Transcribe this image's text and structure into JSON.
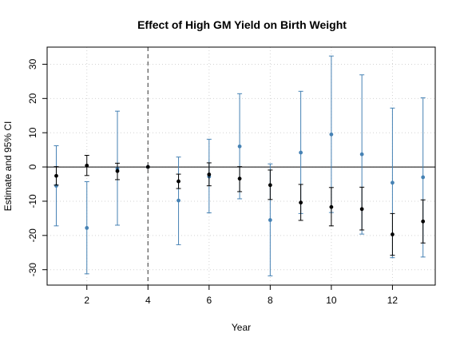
{
  "chart_data": {
    "type": "scatter",
    "title": "Effect of High GM Yield on Birth Weight",
    "xlabel": "Year",
    "ylabel": "Estimate and 95% CI",
    "xlim": [
      0.7,
      13.4
    ],
    "ylim": [
      -34.5,
      35
    ],
    "xticks": [
      2,
      4,
      6,
      8,
      10,
      12
    ],
    "yticks": [
      -30,
      -20,
      -10,
      0,
      10,
      20,
      30
    ],
    "grid": true,
    "reference_hline": 0,
    "reference_vline": 4,
    "series": [
      {
        "color": "#4682b4",
        "x": [
          1,
          2,
          3,
          4,
          5,
          6,
          7,
          8,
          9,
          10,
          11,
          12,
          13
        ],
        "estimate": [
          -5.5,
          -17.8,
          -0.5,
          0,
          -9.8,
          -2.8,
          6.0,
          -15.5,
          4.2,
          9.5,
          3.7,
          -4.6,
          -3.0
        ],
        "ci_low": [
          -17.2,
          -31.2,
          -17.0,
          0,
          -22.7,
          -13.4,
          -9.3,
          -31.8,
          -13.6,
          -13.3,
          -19.6,
          -26.5,
          -26.3
        ],
        "ci_high": [
          6.2,
          -4.3,
          16.3,
          0,
          2.9,
          8.1,
          21.4,
          0.9,
          22.1,
          32.4,
          26.9,
          17.2,
          20.2
        ]
      },
      {
        "color": "#000000",
        "x": [
          1,
          2,
          3,
          4,
          5,
          6,
          7,
          8,
          9,
          10,
          11,
          12,
          13
        ],
        "estimate": [
          -2.6,
          0.4,
          -1.2,
          0,
          -4.2,
          -2.2,
          -3.4,
          -5.3,
          -10.4,
          -11.7,
          -12.3,
          -19.7,
          -15.9
        ],
        "ci_low": [
          -5.3,
          -2.5,
          -3.7,
          0,
          -6.3,
          -5.5,
          -7.2,
          -9.5,
          -15.6,
          -17.2,
          -18.4,
          -25.8,
          -22.2
        ],
        "ci_high": [
          0.1,
          3.4,
          1.1,
          0,
          -2.1,
          1.2,
          0.1,
          -0.9,
          -5.1,
          -6.0,
          -5.9,
          -13.6,
          -9.6
        ]
      }
    ]
  }
}
